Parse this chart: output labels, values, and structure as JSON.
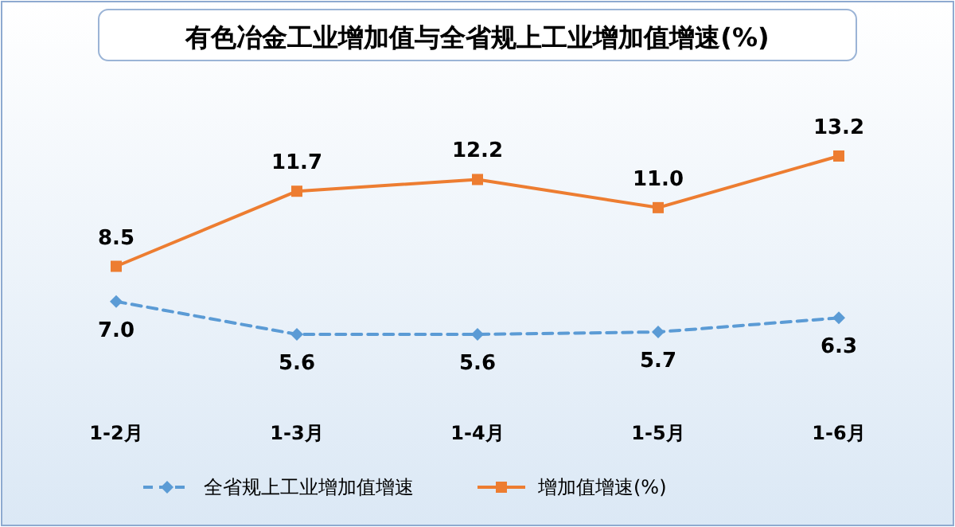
{
  "chart_data": {
    "type": "line",
    "title": "有色冶金工业增加值与全省规上工业增加值增速(%)",
    "categories": [
      "1-2月",
      "1-3月",
      "1-4月",
      "1-5月",
      "1-6月"
    ],
    "series": [
      {
        "name": "全省规上工业增加值增速",
        "color": "#5b9bd5",
        "values": [
          7.0,
          5.6,
          5.6,
          5.7,
          6.3
        ],
        "value_labels": [
          "7.0",
          "5.6",
          "5.6",
          "5.7",
          "6.3"
        ],
        "marker": "diamond",
        "line_style": "dashed"
      },
      {
        "name": "增加值增速(%)",
        "color": "#ed7d31",
        "values": [
          8.5,
          11.7,
          12.2,
          11.0,
          13.2
        ],
        "value_labels": [
          "8.5",
          "11.7",
          "12.2",
          "11.0",
          "13.2"
        ],
        "marker": "square",
        "line_style": "solid"
      }
    ],
    "legend": "bottom"
  }
}
